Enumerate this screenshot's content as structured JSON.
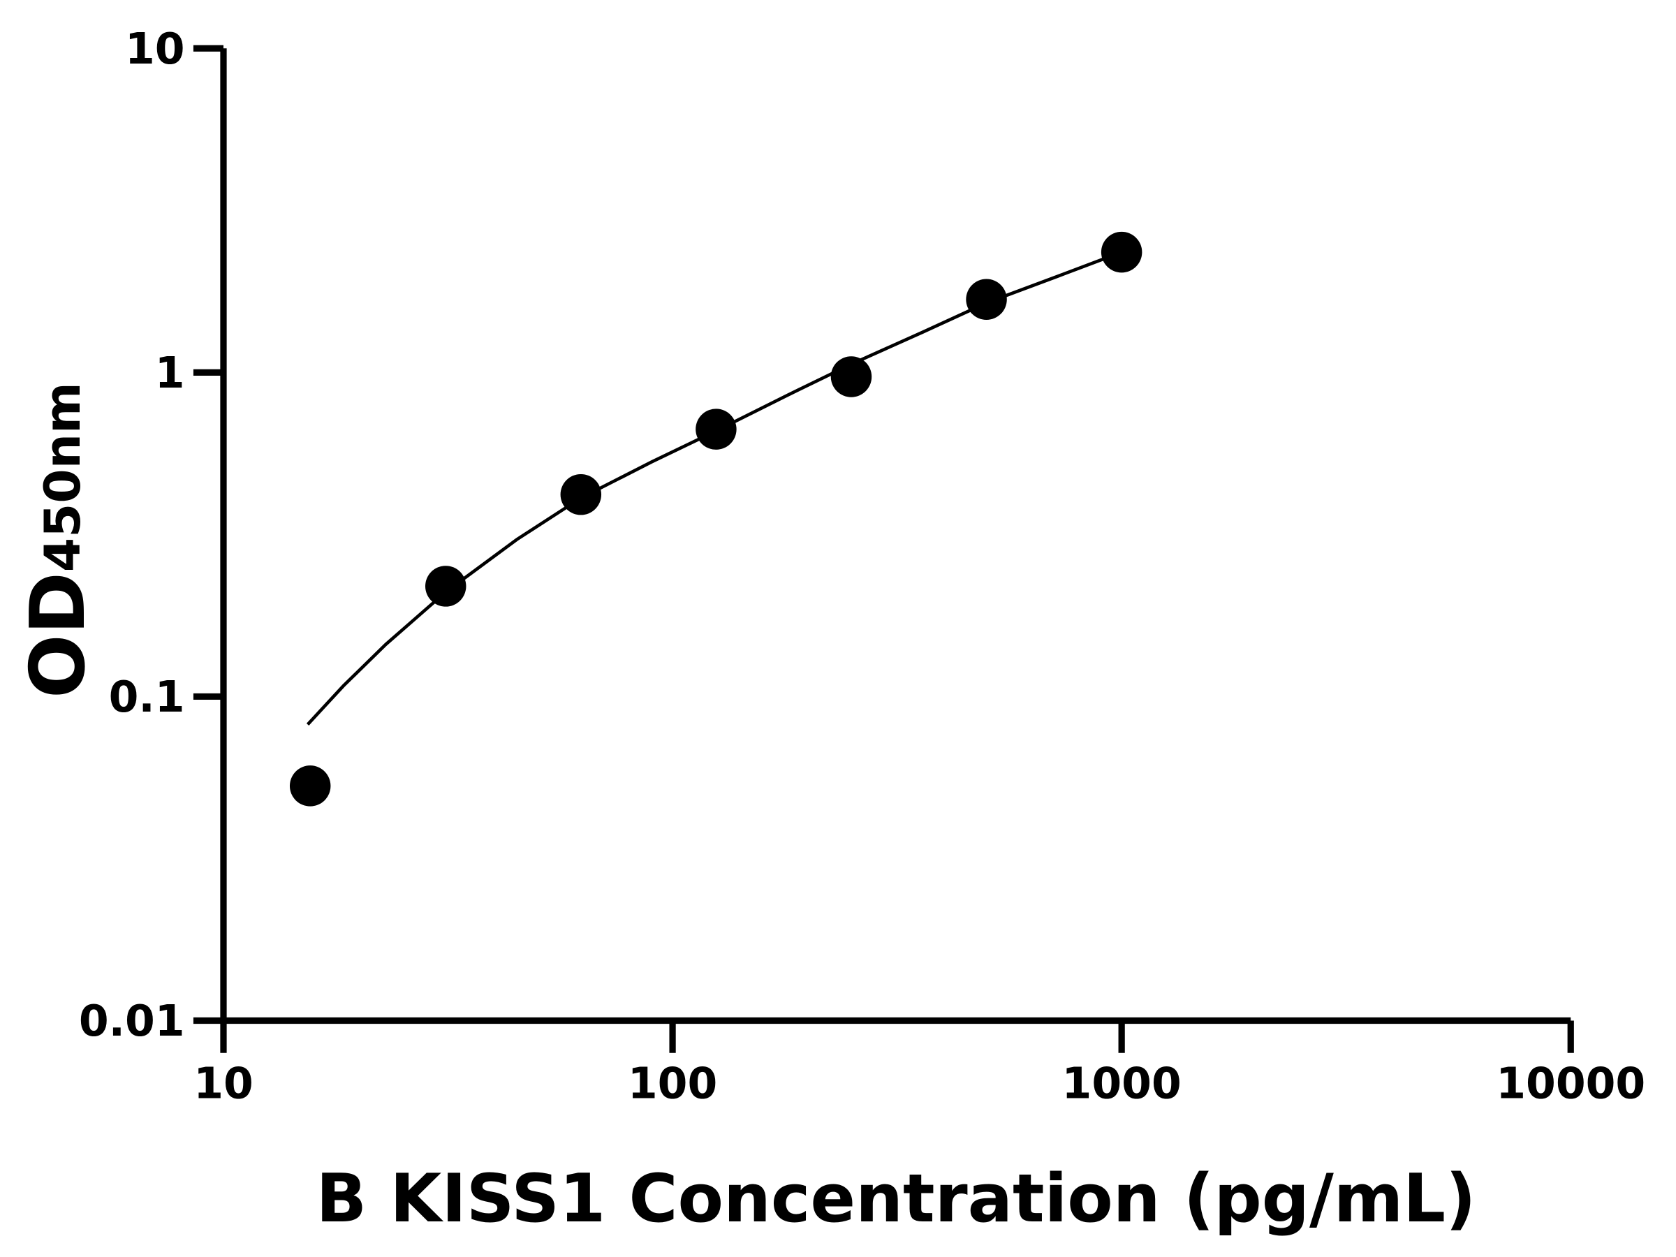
{
  "chart_data": {
    "type": "scatter",
    "title": "",
    "xlabel": "B KISS1 Concentration (pg/mL)",
    "ylabel_main": "OD",
    "ylabel_sub": "450nm",
    "x_scale": "log",
    "y_scale": "log",
    "xlim": [
      10,
      10000
    ],
    "ylim": [
      0.01,
      10
    ],
    "x_ticks": [
      10,
      100,
      1000,
      10000
    ],
    "x_tick_labels": [
      "10",
      "100",
      "1000",
      "10000"
    ],
    "y_ticks": [
      0.01,
      0.1,
      1,
      10
    ],
    "y_tick_labels": [
      "0.01",
      "0.1",
      "1",
      "10"
    ],
    "grid": false,
    "legend": "none",
    "colors": {
      "points": "#000000",
      "curve": "#000000"
    },
    "points": [
      {
        "x": 15.6,
        "y": 0.053
      },
      {
        "x": 31.25,
        "y": 0.219
      },
      {
        "x": 62.5,
        "y": 0.42
      },
      {
        "x": 125,
        "y": 0.668
      },
      {
        "x": 250,
        "y": 0.97
      },
      {
        "x": 500,
        "y": 1.68
      },
      {
        "x": 1000,
        "y": 2.35
      }
    ],
    "fit_curve": [
      {
        "x": 15.4,
        "y": 0.082
      },
      {
        "x": 18.5,
        "y": 0.108
      },
      {
        "x": 23,
        "y": 0.145
      },
      {
        "x": 31.25,
        "y": 0.21
      },
      {
        "x": 45,
        "y": 0.305
      },
      {
        "x": 62.5,
        "y": 0.41
      },
      {
        "x": 90,
        "y": 0.53
      },
      {
        "x": 125,
        "y": 0.66
      },
      {
        "x": 180,
        "y": 0.85
      },
      {
        "x": 250,
        "y": 1.06
      },
      {
        "x": 360,
        "y": 1.33
      },
      {
        "x": 500,
        "y": 1.64
      },
      {
        "x": 720,
        "y": 1.98
      },
      {
        "x": 1000,
        "y": 2.35
      }
    ]
  }
}
